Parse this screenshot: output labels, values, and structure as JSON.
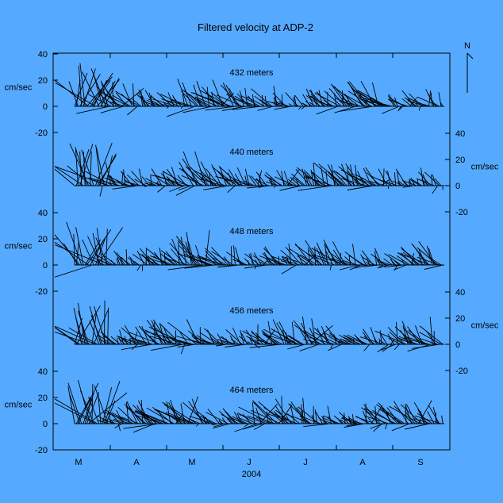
{
  "chart_data": {
    "type": "stick_plot",
    "title": "Filtered velocity at ADP-2",
    "xlabel": "2004",
    "x_tick_labels": [
      "M",
      "A",
      "M",
      "J",
      "J",
      "A",
      "S"
    ],
    "y_unit_label": "cm/sec",
    "y_ticks": [
      -20,
      0,
      20,
      40
    ],
    "north_label": "N",
    "panels": [
      {
        "name": "432 meters",
        "axis_side": "left"
      },
      {
        "name": "440 meters",
        "axis_side": "right"
      },
      {
        "name": "448 meters",
        "axis_side": "left"
      },
      {
        "name": "456 meters",
        "axis_side": "right"
      },
      {
        "name": "464 meters",
        "axis_side": "left"
      }
    ],
    "grid": false,
    "legend": "none"
  }
}
